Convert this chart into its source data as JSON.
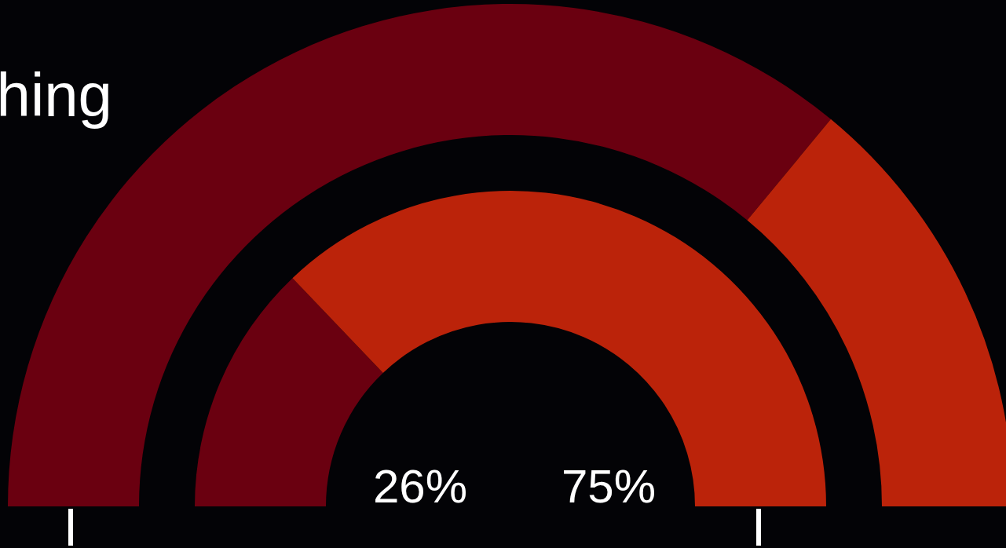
{
  "chart_data": [
    {
      "type": "donut",
      "title": "hing",
      "categories": [
        null,
        null
      ],
      "values": [
        72,
        28
      ],
      "colors": [
        "#6a0010",
        "#bb230a"
      ]
    },
    {
      "type": "donut",
      "categories": [
        null,
        null
      ],
      "values": [
        26,
        75
      ],
      "colors": [
        "#6a0010",
        "#bb230a"
      ],
      "value_labels": [
        "26%",
        "75%"
      ]
    }
  ]
}
